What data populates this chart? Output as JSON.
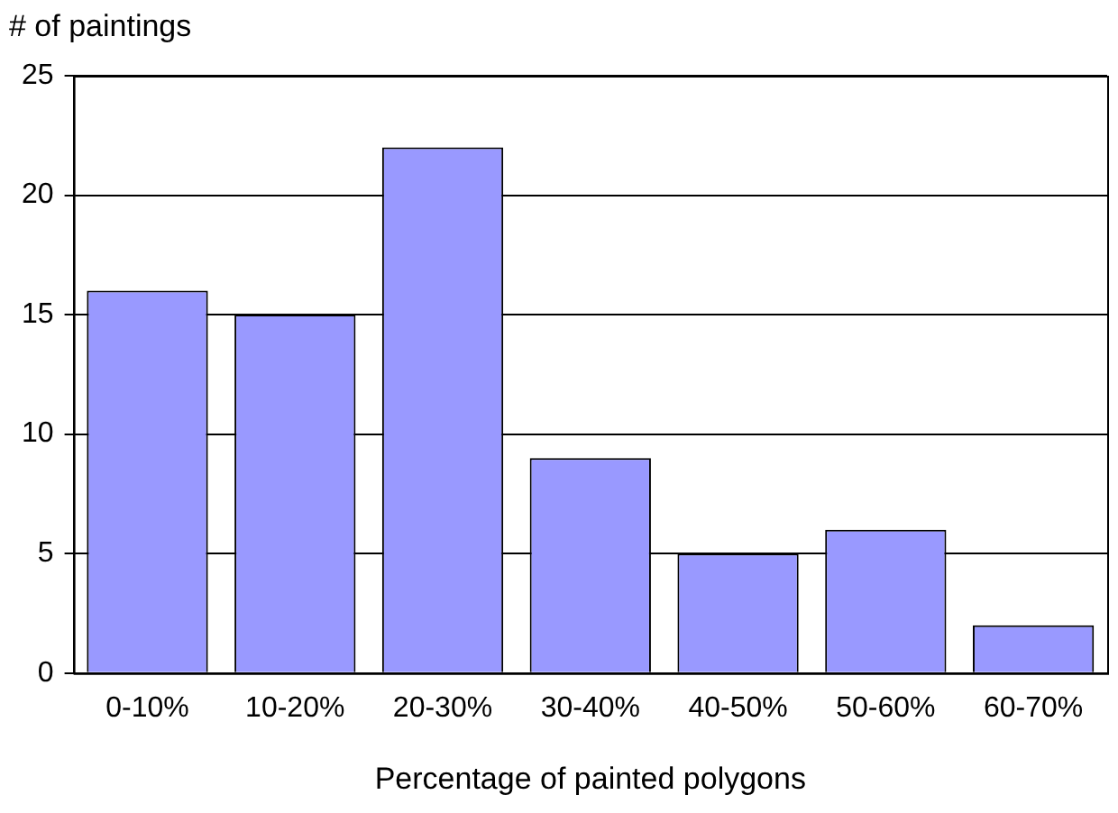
{
  "chart_data": {
    "type": "bar",
    "ylabel": "# of paintings",
    "xlabel": "Percentage of painted polygons",
    "categories": [
      "0-10%",
      "10-20%",
      "20-30%",
      "30-40%",
      "40-50%",
      "50-60%",
      "60-70%"
    ],
    "values": [
      16,
      15,
      22,
      9,
      5,
      6,
      2
    ],
    "color": "#9999ff",
    "ylim": [
      0,
      25
    ],
    "yticks": [
      0,
      5,
      10,
      15,
      20,
      25
    ],
    "grid": "y"
  }
}
